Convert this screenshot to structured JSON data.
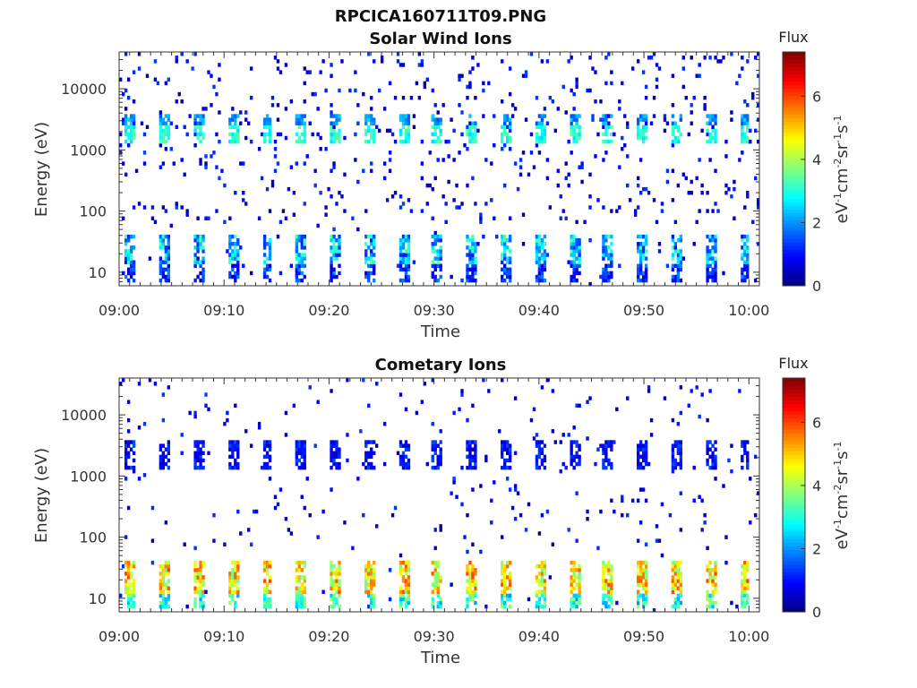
{
  "figure_title": "RPCICA160711T09.PNG",
  "chart_data": [
    {
      "type": "heatmap",
      "title": "Solar Wind Ions",
      "xlabel": "Time",
      "ylabel": "Energy (eV)",
      "x_ticks": [
        "09:00",
        "09:10",
        "09:20",
        "09:30",
        "09:40",
        "09:50",
        "10:00"
      ],
      "x_range_minutes": [
        0,
        61
      ],
      "y_ticks": [
        10,
        100,
        1000,
        10000
      ],
      "y_scale": "log",
      "y_range": [
        6,
        40000
      ],
      "colorbar": {
        "title": "Flux",
        "label": "eV-1cm-2sr-1s-1",
        "ticks": [
          0,
          2,
          4,
          6
        ],
        "range": [
          0,
          7.4
        ],
        "colormap": "jet"
      },
      "bands": [
        {
          "energy_range": [
            1200,
            2400
          ],
          "flux_range": [
            2.5,
            3.5
          ],
          "description": "periodic bursts"
        },
        {
          "energy_range": [
            2600,
            4000
          ],
          "flux_range": [
            1.5,
            2.5
          ],
          "description": "periodic bursts"
        },
        {
          "energy_range": [
            14,
            40
          ],
          "flux_range": [
            1.0,
            3.5
          ],
          "description": "periodic bursts"
        },
        {
          "energy_range": [
            7,
            14
          ],
          "flux_range": [
            0.5,
            2.0
          ],
          "description": "periodic bursts"
        }
      ],
      "burst_period_minutes": 3.25
    },
    {
      "type": "heatmap",
      "title": "Cometary Ions",
      "xlabel": "Time",
      "ylabel": "Energy (eV)",
      "x_ticks": [
        "09:00",
        "09:10",
        "09:20",
        "09:30",
        "09:40",
        "09:50",
        "10:00"
      ],
      "x_range_minutes": [
        0,
        61
      ],
      "y_ticks": [
        10,
        100,
        1000,
        10000
      ],
      "y_scale": "log",
      "y_range": [
        6,
        40000
      ],
      "colorbar": {
        "title": "Flux",
        "label": "eV-1cm-2sr-1s-1",
        "ticks": [
          0,
          2,
          4,
          6
        ],
        "range": [
          0,
          7.4
        ],
        "colormap": "jet"
      },
      "bands": [
        {
          "energy_range": [
            12,
            40
          ],
          "flux_range": [
            3.5,
            6.0
          ],
          "description": "periodic bursts"
        },
        {
          "energy_range": [
            7,
            12
          ],
          "flux_range": [
            2.0,
            4.0
          ],
          "description": "periodic bursts"
        },
        {
          "energy_range": [
            1200,
            4000
          ],
          "flux_range": [
            0.5,
            1.5
          ],
          "description": "periodic bursts"
        }
      ],
      "burst_period_minutes": 3.25
    }
  ]
}
